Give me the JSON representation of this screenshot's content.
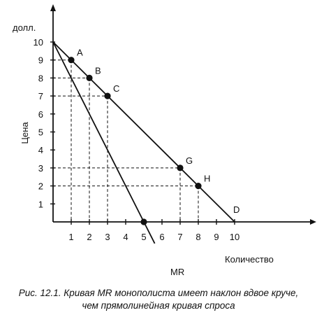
{
  "chart_data": {
    "type": "line",
    "xlabel": "Количество",
    "ylabel": "Цена",
    "y_unit": "долл.",
    "xlim": [
      0,
      10
    ],
    "ylim": [
      0,
      10
    ],
    "x_ticks": [
      "1",
      "2",
      "3",
      "4",
      "5",
      "6",
      "7",
      "8",
      "9",
      "10"
    ],
    "y_ticks": [
      "1",
      "2",
      "3",
      "4",
      "5",
      "6",
      "7",
      "8",
      "9",
      "10"
    ],
    "series": [
      {
        "name": "D",
        "x": [
          0,
          10
        ],
        "y": [
          10,
          0
        ],
        "color": "#111111"
      },
      {
        "name": "MR",
        "x": [
          0,
          5,
          5.6
        ],
        "y": [
          10,
          0,
          -1.2
        ],
        "color": "#111111"
      }
    ],
    "points": [
      {
        "label": "A",
        "x": 1,
        "y": 9
      },
      {
        "label": "B",
        "x": 2,
        "y": 8
      },
      {
        "label": "C",
        "x": 3,
        "y": 7
      },
      {
        "label": "G",
        "x": 7,
        "y": 3
      },
      {
        "label": "H",
        "x": 8,
        "y": 2
      }
    ],
    "marked_x_point": {
      "x": 5,
      "y": 0
    },
    "grid": false
  },
  "caption": {
    "line1": "Рис. 12.1. Кривая MR монополиста имеет наклон вдвое круче,",
    "line2": "чем прямолинейная кривая спроса"
  }
}
